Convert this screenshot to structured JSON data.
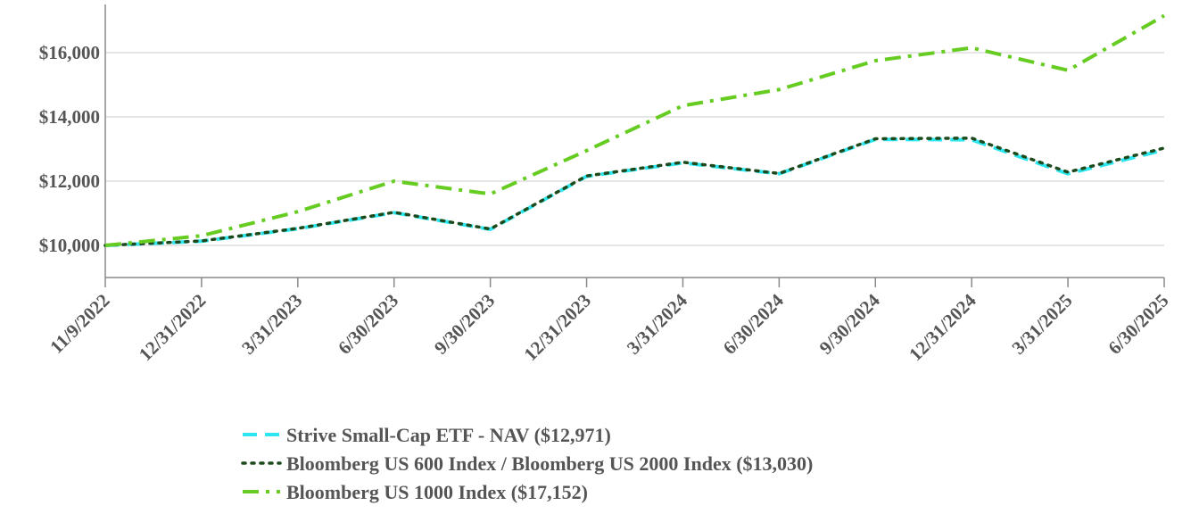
{
  "chart_data": {
    "type": "line",
    "title": "",
    "xlabel": "",
    "ylabel": "",
    "categories": [
      "11/9/2022",
      "12/31/2022",
      "3/31/2023",
      "6/30/2023",
      "9/30/2023",
      "12/31/2023",
      "3/31/2024",
      "6/30/2024",
      "9/30/2024",
      "12/31/2024",
      "3/31/2025",
      "6/30/2025"
    ],
    "yticks": [
      10000,
      12000,
      14000,
      16000
    ],
    "ytick_labels": [
      "$10,000",
      "$12,000",
      "$14,000",
      "$16,000"
    ],
    "ylim": [
      9000,
      17500
    ],
    "grid": true,
    "legend_position": "bottom",
    "series": [
      {
        "name": "Strive Small-Cap ETF - NAV ($12,971)",
        "color": "#2ee6f0",
        "style": "dashed",
        "values": [
          10000,
          10130,
          10520,
          11020,
          10500,
          12150,
          12570,
          12230,
          13300,
          13290,
          12230,
          12971
        ]
      },
      {
        "name": "Bloomberg US 600 Index / Bloomberg US 2000 Index ($13,030)",
        "color": "#1d4a1d",
        "style": "dotted",
        "values": [
          10000,
          10140,
          10530,
          11030,
          10510,
          12160,
          12590,
          12240,
          13320,
          13340,
          12280,
          13030
        ]
      },
      {
        "name": "Bloomberg US 1000 Index ($17,152)",
        "color": "#66cc22",
        "style": "dashdot",
        "values": [
          10000,
          10300,
          11050,
          12000,
          11600,
          12950,
          14350,
          14850,
          15750,
          16150,
          15450,
          17152
        ]
      }
    ]
  }
}
